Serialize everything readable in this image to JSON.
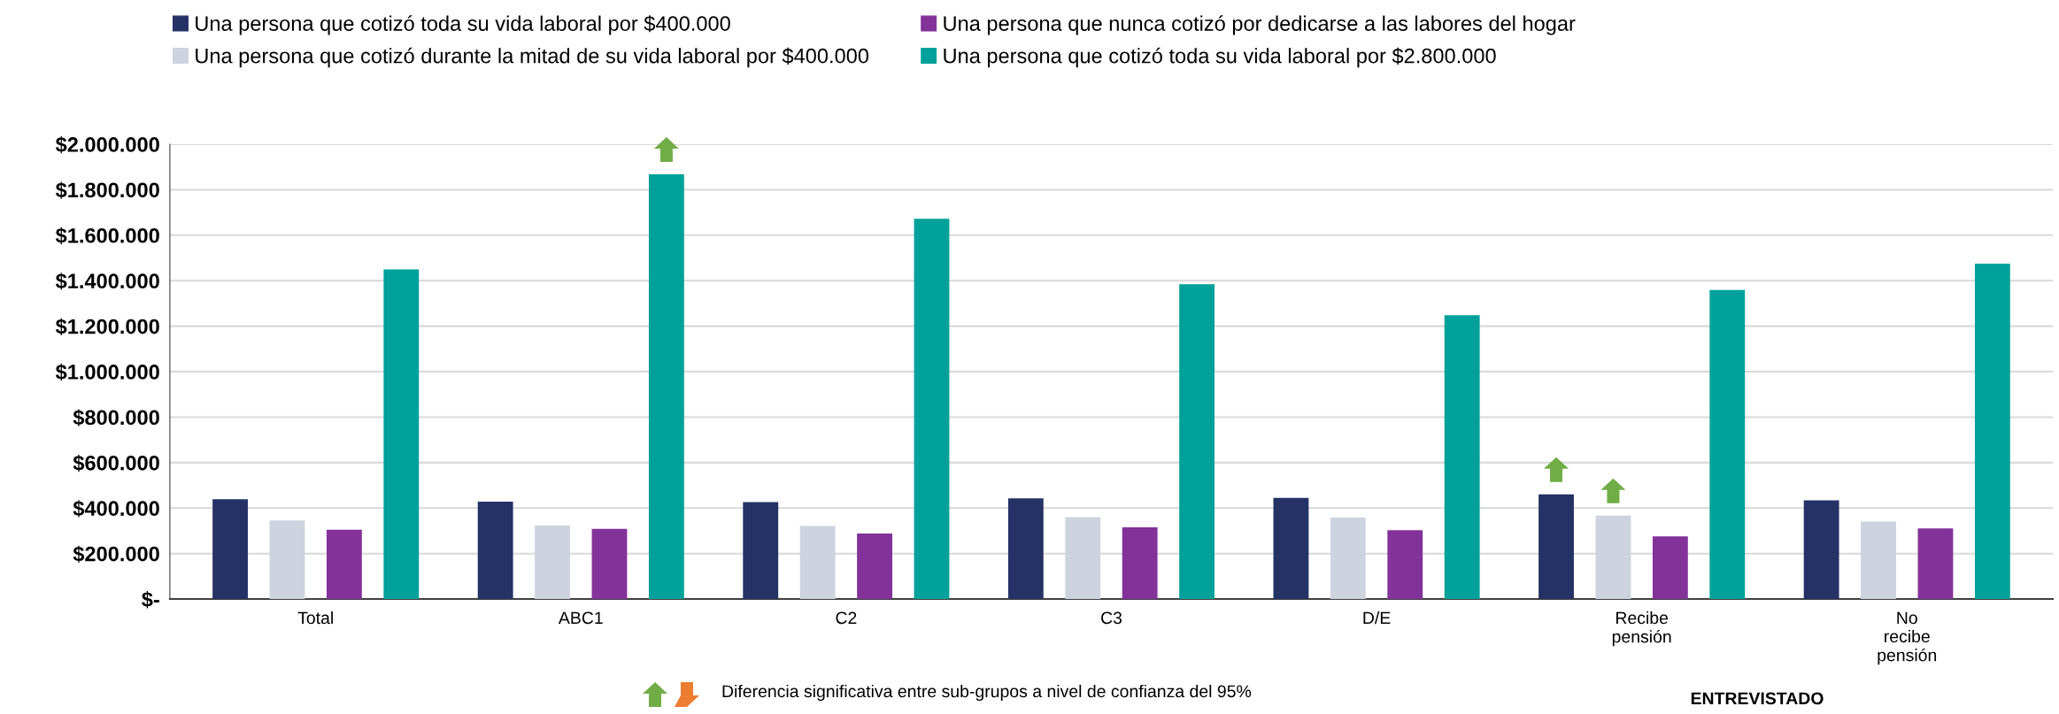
{
  "chart_data": {
    "type": "bar",
    "categories": [
      "Total",
      "ABC1",
      "C2",
      "C3",
      "D/E",
      "Recibe\npensión",
      "No\nrecibe\npensión"
    ],
    "series": [
      {
        "name": "Una persona que cotizó toda su vida laboral por $400.000",
        "color": "#243266",
        "values": [
          439000,
          428000,
          426000,
          443000,
          445000,
          460000,
          434000
        ]
      },
      {
        "name": "Una persona que cotizó durante la mitad de su vida laboral por $400.000",
        "color": "#cdd3df",
        "values": [
          346000,
          323000,
          321000,
          360000,
          358000,
          367000,
          341000
        ]
      },
      {
        "name": "Una persona que nunca cotizó por dedicarse a las labores del hogar",
        "color": "#83329a",
        "values": [
          305000,
          309000,
          288000,
          315000,
          303000,
          276000,
          311000
        ]
      },
      {
        "name": "Una persona que cotizó toda su vida laboral por $2.800.000",
        "color": "#00a19a",
        "values": [
          1450000,
          1868000,
          1672000,
          1384000,
          1248000,
          1359000,
          1475000
        ]
      }
    ],
    "ylim": [
      0,
      2000000
    ],
    "yticks": [
      {
        "value": 0,
        "label": "$-"
      },
      {
        "value": 200000,
        "label": "$200.000"
      },
      {
        "value": 400000,
        "label": "$400.000"
      },
      {
        "value": 600000,
        "label": "$600.000"
      },
      {
        "value": 800000,
        "label": "$800.000"
      },
      {
        "value": 1000000,
        "label": "$1.000.000"
      },
      {
        "value": 1200000,
        "label": "$1.200.000"
      },
      {
        "value": 1400000,
        "label": "$1.400.000"
      },
      {
        "value": 1600000,
        "label": "$1.600.000"
      },
      {
        "value": 1800000,
        "label": "$1.800.000"
      },
      {
        "value": 2000000,
        "label": "$2.000.000"
      }
    ],
    "grid": "y",
    "legend": "top",
    "annotations": [
      "Diferencia significativa entre sub-grupos a nivel de confianza del 95%",
      "ENTREVISTADO"
    ]
  }
}
